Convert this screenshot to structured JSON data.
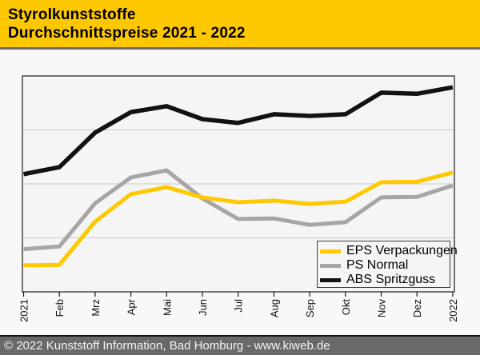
{
  "header": {
    "title_line1": "Styrolkunststoffe",
    "title_line2": "Durchschnittspreise 2021 - 2022",
    "bg_color": "#FDC800",
    "text_color": "#000000"
  },
  "chart_data": {
    "type": "line",
    "title": "Styrolkunststoffe Durchschnittspreise 2021 - 2022",
    "categories": [
      "2021",
      "Feb",
      "Mrz",
      "Apr",
      "Mai",
      "Jun",
      "Jul",
      "Aug",
      "Sep",
      "Okt",
      "Nov",
      "Dez",
      "2022"
    ],
    "x_tick_label_rotation_deg": -90,
    "xlabel": "",
    "ylabel": "",
    "y_axis_labeled": false,
    "ylim": [
      0,
      4
    ],
    "gridlines_y": [
      1,
      2,
      3
    ],
    "grid": "horizontal only, unlabeled",
    "legend_position": "inside-bottom-right",
    "series": [
      {
        "name": "EPS Verpackungen",
        "color": "#FFC800",
        "values": [
          0.49,
          0.5,
          1.3,
          1.81,
          1.94,
          1.75,
          1.66,
          1.69,
          1.63,
          1.67,
          2.03,
          2.04,
          2.21
        ]
      },
      {
        "name": "PS Normal",
        "color": "#A6A6A6",
        "values": [
          0.79,
          0.84,
          1.64,
          2.12,
          2.25,
          1.73,
          1.35,
          1.36,
          1.24,
          1.29,
          1.75,
          1.76,
          1.97
        ]
      },
      {
        "name": "ABS Spritzguss",
        "color": "#121212",
        "values": [
          2.18,
          2.31,
          2.95,
          3.33,
          3.44,
          3.2,
          3.13,
          3.29,
          3.26,
          3.29,
          3.69,
          3.67,
          3.79
        ]
      }
    ],
    "value_scale_note": "y axis shows no numeric labels; values expressed in gridline units (plot bottom = 0, plot top = 4)"
  },
  "footer": {
    "text": "© 2022 Kunststoff Information, Bad Homburg - www.kiweb.de",
    "bg_color": "#69696B",
    "text_color": "#F5F5F5"
  }
}
